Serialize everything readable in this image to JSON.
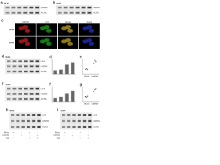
{
  "blots": [
    {
      "letter": "a",
      "cell": "RLM",
      "bands": [
        "HSP90",
        "ACTB"
      ]
    },
    {
      "letter": "b",
      "cell": "A375",
      "bands": [
        "HSP90",
        "ACTB"
      ]
    },
    {
      "letter": "d",
      "cell": "RLM",
      "bands": [
        "LC3",
        "HSP90",
        "ACTB"
      ]
    },
    {
      "letter": "f",
      "cell": "A375",
      "bands": [
        "LC3",
        "HSP90",
        "ACTB"
      ]
    },
    {
      "letter": "h",
      "cell": "RLM",
      "bands": [
        "LC3",
        "HSP90",
        "ACTB"
      ],
      "conditions": [
        {
          "name": "Mock",
          "signs": [
            "+",
            "-",
            "+",
            "-"
          ]
        },
        {
          "name": "HSP90",
          "signs": [
            "-",
            "+",
            "-",
            "+"
          ]
        },
        {
          "name": "CQ",
          "signs": [
            "-",
            "-",
            "+",
            "+"
          ]
        }
      ]
    },
    {
      "letter": "i",
      "cell": "A375",
      "bands": [
        "LC3",
        "HSP90",
        "ACTB"
      ],
      "conditions": [
        {
          "name": "Mock",
          "signs": [
            "+",
            "-",
            "+",
            "-"
          ]
        },
        {
          "name": "HSP90",
          "signs": [
            "-",
            "+",
            "-",
            "+"
          ]
        },
        {
          "name": "CQ",
          "signs": [
            "-",
            "-",
            "+",
            "+"
          ]
        }
      ]
    }
  ],
  "microscopy": {
    "letter": "c",
    "columns": [
      "HSP90",
      "LC3",
      "Merge",
      "Nuclei"
    ],
    "rows": [
      "RLM",
      "A375"
    ]
  },
  "charts": [
    {
      "letter": "d",
      "type": "bar",
      "values": [
        1,
        1.2,
        2.6,
        3.1
      ],
      "ylim": [
        0,
        4
      ],
      "color": "#666666"
    },
    {
      "letter": "e",
      "type": "scatter",
      "groups": [
        "Mock",
        "HSP90"
      ],
      "values": [
        [
          1,
          1.1,
          0.9
        ],
        [
          2.2,
          2.8,
          2.5
        ]
      ],
      "ylim": [
        0,
        3
      ],
      "color": "#333333"
    },
    {
      "letter": "f",
      "type": "bar",
      "values": [
        1,
        1.3,
        2.2,
        2.9
      ],
      "ylim": [
        0,
        4
      ],
      "color": "#666666"
    },
    {
      "letter": "g",
      "type": "scatter",
      "groups": [
        "Mock",
        "HSP90"
      ],
      "values": [
        [
          1,
          0.9,
          1.1
        ],
        [
          2.0,
          2.4,
          2.6
        ]
      ],
      "ylim": [
        0,
        3
      ],
      "color": "#333333"
    }
  ]
}
